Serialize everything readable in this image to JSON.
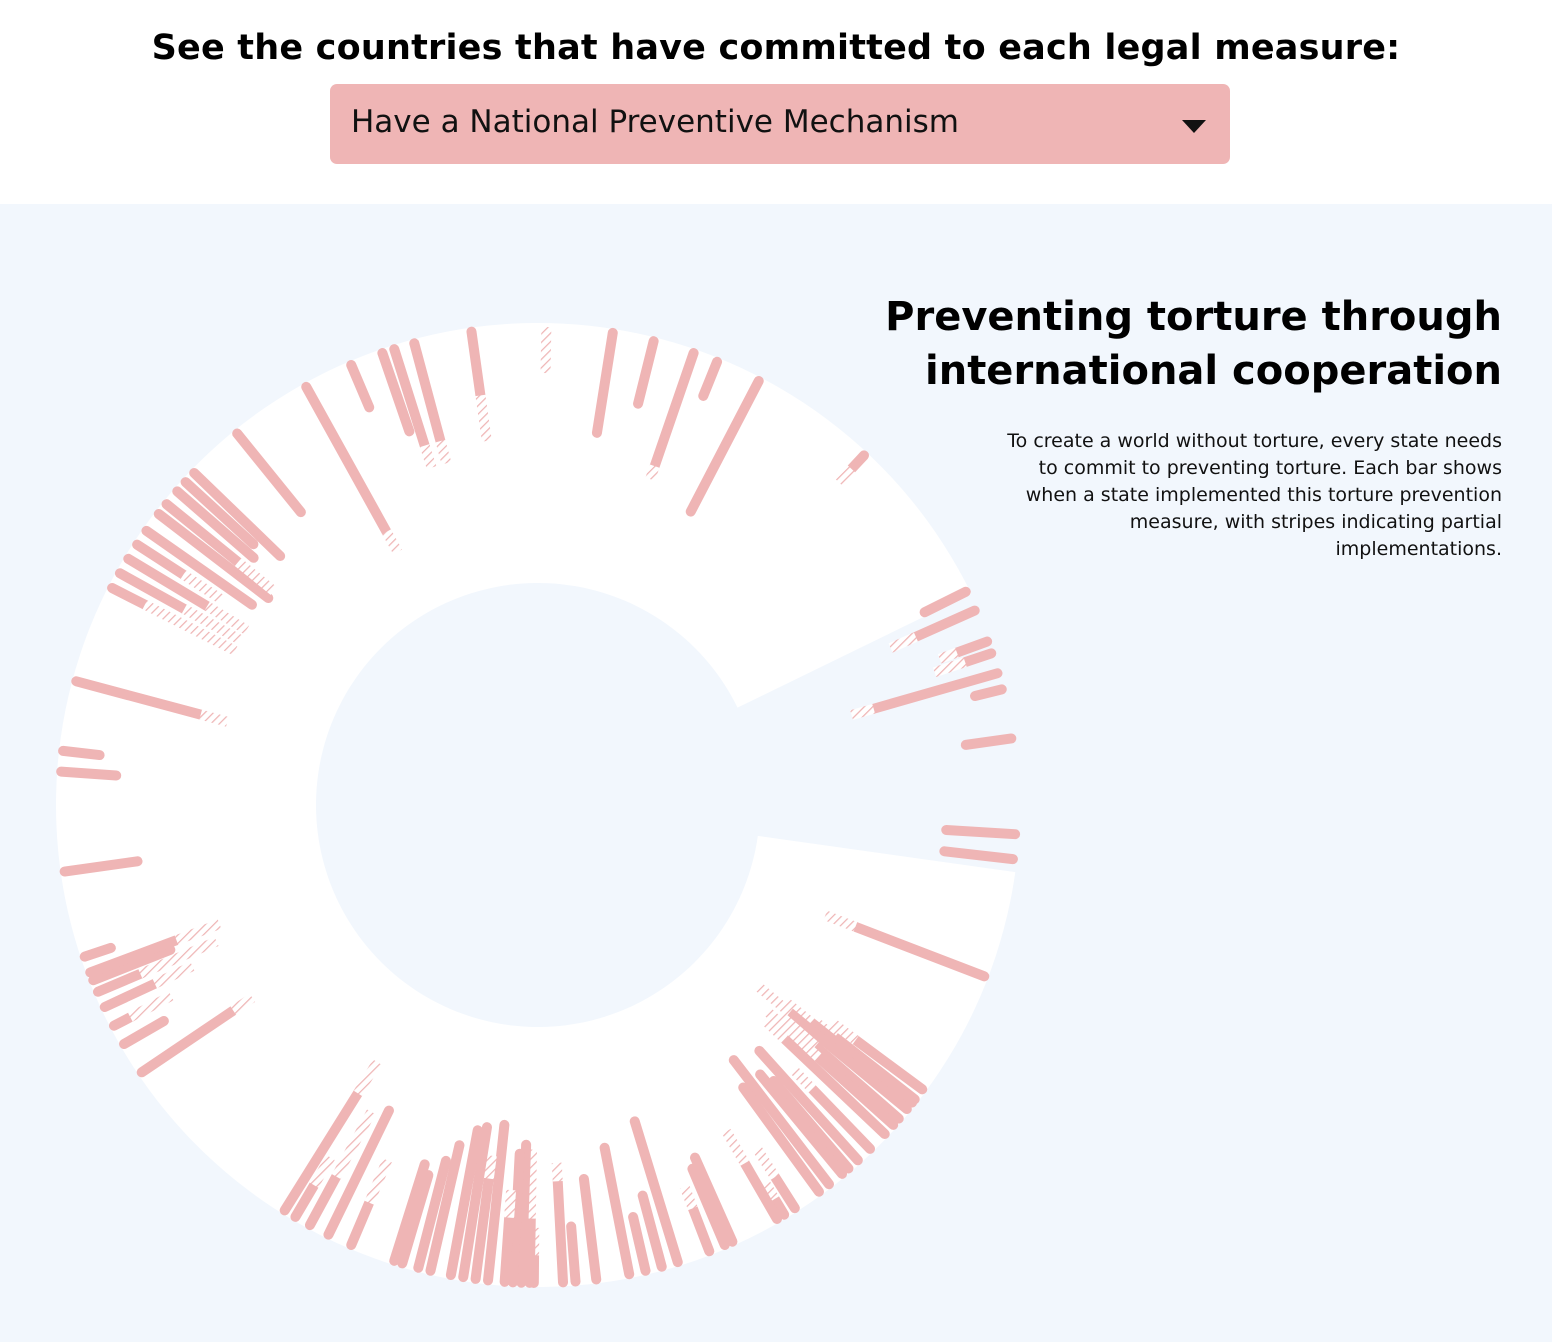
{
  "header": {
    "heading": "See the countries that have committed to each legal measure:",
    "select_value": "Have a National Preventive Mechanism"
  },
  "chart_text": {
    "title": "Preventing torture through international cooperation",
    "description": "To create a world without torture, every state needs to commit to preventing torture. Each bar shows when a state implemented this torture prevention measure, with stripes indicating partial implementations."
  },
  "colors": {
    "bar": "#efb5b5",
    "background": "#f2f7fd",
    "ring": "#ffffff"
  },
  "chart_data": {
    "type": "radial-bar",
    "measure": "Have a National Preventive Mechanism",
    "bar_value_unit": "relative duration since implementation (0-1)",
    "bars": [
      {
        "angle": 1.0,
        "full": 0.0,
        "partial": 0.1
      },
      {
        "angle": 9.0,
        "full": 0.22,
        "partial": 0.0
      },
      {
        "angle": 14.0,
        "full": 0.14,
        "partial": 0.0
      },
      {
        "angle": 19.0,
        "full": 0.26,
        "partial": 0.03
      },
      {
        "angle": 22.0,
        "full": 0.08,
        "partial": 0.0
      },
      {
        "angle": 27.5,
        "full": 0.32,
        "partial": 0.0
      },
      {
        "angle": 43.0,
        "full": 0.04,
        "partial": 0.04
      },
      {
        "angle": 63.5,
        "full": 0.1,
        "partial": 0.0
      },
      {
        "angle": 66.0,
        "full": 0.14,
        "partial": 0.06
      },
      {
        "angle": 71.5,
        "full": 0.06,
        "partial": 0.07
      },
      {
        "angle": 70.0,
        "full": 0.07,
        "partial": 0.04
      },
      {
        "angle": 74.0,
        "full": 0.28,
        "partial": 0.05
      },
      {
        "angle": 76.0,
        "full": 0.06,
        "partial": 0.0
      },
      {
        "angle": 82.0,
        "full": 0.1,
        "partial": 0.0
      },
      {
        "angle": 93.5,
        "full": 0.15,
        "partial": 0.0
      },
      {
        "angle": 96.5,
        "full": 0.15,
        "partial": 0.0
      },
      {
        "angle": 111.0,
        "full": 0.3,
        "partial": 0.07
      },
      {
        "angle": 128.0,
        "full": 0.22,
        "partial": 0.05
      },
      {
        "angle": 126.5,
        "full": 0.18,
        "partial": 0.06
      },
      {
        "angle": 128.5,
        "full": 0.28,
        "partial": 0.07
      },
      {
        "angle": 129.5,
        "full": 0.33,
        "partial": 0.09
      },
      {
        "angle": 131.0,
        "full": 0.24,
        "partial": 0.1
      },
      {
        "angle": 132.0,
        "full": 0.22,
        "partial": 0.15
      },
      {
        "angle": 133.5,
        "full": 0.3,
        "partial": 0.06
      },
      {
        "angle": 136.0,
        "full": 0.18,
        "partial": 0.06
      },
      {
        "angle": 138.0,
        "full": 0.32,
        "partial": 0.0
      },
      {
        "angle": 139.5,
        "full": 0.25,
        "partial": 0.0
      },
      {
        "angle": 140.5,
        "full": 0.28,
        "partial": 0.0
      },
      {
        "angle": 142.5,
        "full": 0.34,
        "partial": 0.0
      },
      {
        "angle": 144.0,
        "full": 0.28,
        "partial": 0.0
      },
      {
        "angle": 147.5,
        "full": 0.08,
        "partial": 0.07
      },
      {
        "angle": 149.0,
        "full": 0.04,
        "partial": 0.04
      },
      {
        "angle": 150.0,
        "full": 0.14,
        "partial": 0.08
      },
      {
        "angle": 156.0,
        "full": 0.2,
        "partial": 0.0
      },
      {
        "angle": 157.0,
        "full": 0.18,
        "partial": 0.0
      },
      {
        "angle": 159.0,
        "full": 0.1,
        "partial": 0.05
      },
      {
        "angle": 163.0,
        "full": 0.32,
        "partial": 0.0
      },
      {
        "angle": 165.0,
        "full": 0.16,
        "partial": 0.0
      },
      {
        "angle": 167.0,
        "full": 0.12,
        "partial": 0.0
      },
      {
        "angle": 169.0,
        "full": 0.28,
        "partial": 0.0
      },
      {
        "angle": 173.0,
        "full": 0.22,
        "partial": 0.0
      },
      {
        "angle": 175.5,
        "full": 0.12,
        "partial": 0.0
      },
      {
        "angle": 177.0,
        "full": 0.22,
        "partial": 0.04
      },
      {
        "angle": 180.5,
        "full": 0.06,
        "partial": 0.06
      },
      {
        "angle": 181.0,
        "full": 0.14,
        "partial": 0.15
      },
      {
        "angle": 182.0,
        "full": 0.3,
        "partial": 0.0
      },
      {
        "angle": 183.0,
        "full": 0.28,
        "partial": 0.0
      },
      {
        "angle": 184.0,
        "full": 0.14,
        "partial": 0.06
      },
      {
        "angle": 186.0,
        "full": 0.34,
        "partial": 0.0
      },
      {
        "angle": 187.5,
        "full": 0.22,
        "partial": 0.05
      },
      {
        "angle": 189.0,
        "full": 0.33,
        "partial": 0.0
      },
      {
        "angle": 190.5,
        "full": 0.32,
        "partial": 0.0
      },
      {
        "angle": 193.0,
        "full": 0.28,
        "partial": 0.0
      },
      {
        "angle": 194.5,
        "full": 0.24,
        "partial": 0.0
      },
      {
        "angle": 196.5,
        "full": 0.2,
        "partial": 0.0
      },
      {
        "angle": 197.5,
        "full": 0.22,
        "partial": 0.0
      },
      {
        "angle": 203.0,
        "full": 0.1,
        "partial": 0.1
      },
      {
        "angle": 206.0,
        "full": 0.3,
        "partial": 0.0
      },
      {
        "angle": 208.5,
        "full": 0.12,
        "partial": 0.16
      },
      {
        "angle": 210.5,
        "full": 0.08,
        "partial": 0.07
      },
      {
        "angle": 212.0,
        "full": 0.3,
        "partial": 0.08
      },
      {
        "angle": 236.0,
        "full": 0.24,
        "partial": 0.05
      },
      {
        "angle": 240.0,
        "full": 0.1,
        "partial": 0.0
      },
      {
        "angle": 242.5,
        "full": 0.04,
        "partial": 0.1
      },
      {
        "angle": 245.0,
        "full": 0.12,
        "partial": 0.09
      },
      {
        "angle": 247.0,
        "full": 0.1,
        "partial": 0.18
      },
      {
        "angle": 248.5,
        "full": 0.18,
        "partial": 0.0
      },
      {
        "angle": 249.5,
        "full": 0.2,
        "partial": 0.1
      },
      {
        "angle": 251.5,
        "full": 0.06,
        "partial": 0.0
      },
      {
        "angle": 262.0,
        "full": 0.16,
        "partial": 0.0
      },
      {
        "angle": 274.0,
        "full": 0.12,
        "partial": 0.0
      },
      {
        "angle": 276.5,
        "full": 0.08,
        "partial": 0.0
      },
      {
        "angle": 285.0,
        "full": 0.28,
        "partial": 0.06
      },
      {
        "angle": 297.0,
        "full": 0.08,
        "partial": 0.22
      },
      {
        "angle": 299.0,
        "full": 0.16,
        "partial": 0.14
      },
      {
        "angle": 301.0,
        "full": 0.2,
        "partial": 0.1
      },
      {
        "angle": 303.0,
        "full": 0.12,
        "partial": 0.1
      },
      {
        "angle": 305.0,
        "full": 0.28,
        "partial": 0.0
      },
      {
        "angle": 307.5,
        "full": 0.3,
        "partial": 0.0
      },
      {
        "angle": 309.0,
        "full": 0.2,
        "partial": 0.1
      },
      {
        "angle": 311.0,
        "full": 0.22,
        "partial": 0.0
      },
      {
        "angle": 312.5,
        "full": 0.2,
        "partial": 0.0
      },
      {
        "angle": 314.0,
        "full": 0.26,
        "partial": 0.0
      },
      {
        "angle": 321.0,
        "full": 0.22,
        "partial": 0.0
      },
      {
        "angle": 331.0,
        "full": 0.36,
        "partial": 0.05
      },
      {
        "angle": 337.0,
        "full": 0.1,
        "partial": 0.0
      },
      {
        "angle": 341.0,
        "full": 0.18,
        "partial": 0.0
      },
      {
        "angle": 342.5,
        "full": 0.22,
        "partial": 0.05
      },
      {
        "angle": 345.0,
        "full": 0.22,
        "partial": 0.05
      },
      {
        "angle": 352.0,
        "full": 0.14,
        "partial": 0.1
      }
    ]
  }
}
